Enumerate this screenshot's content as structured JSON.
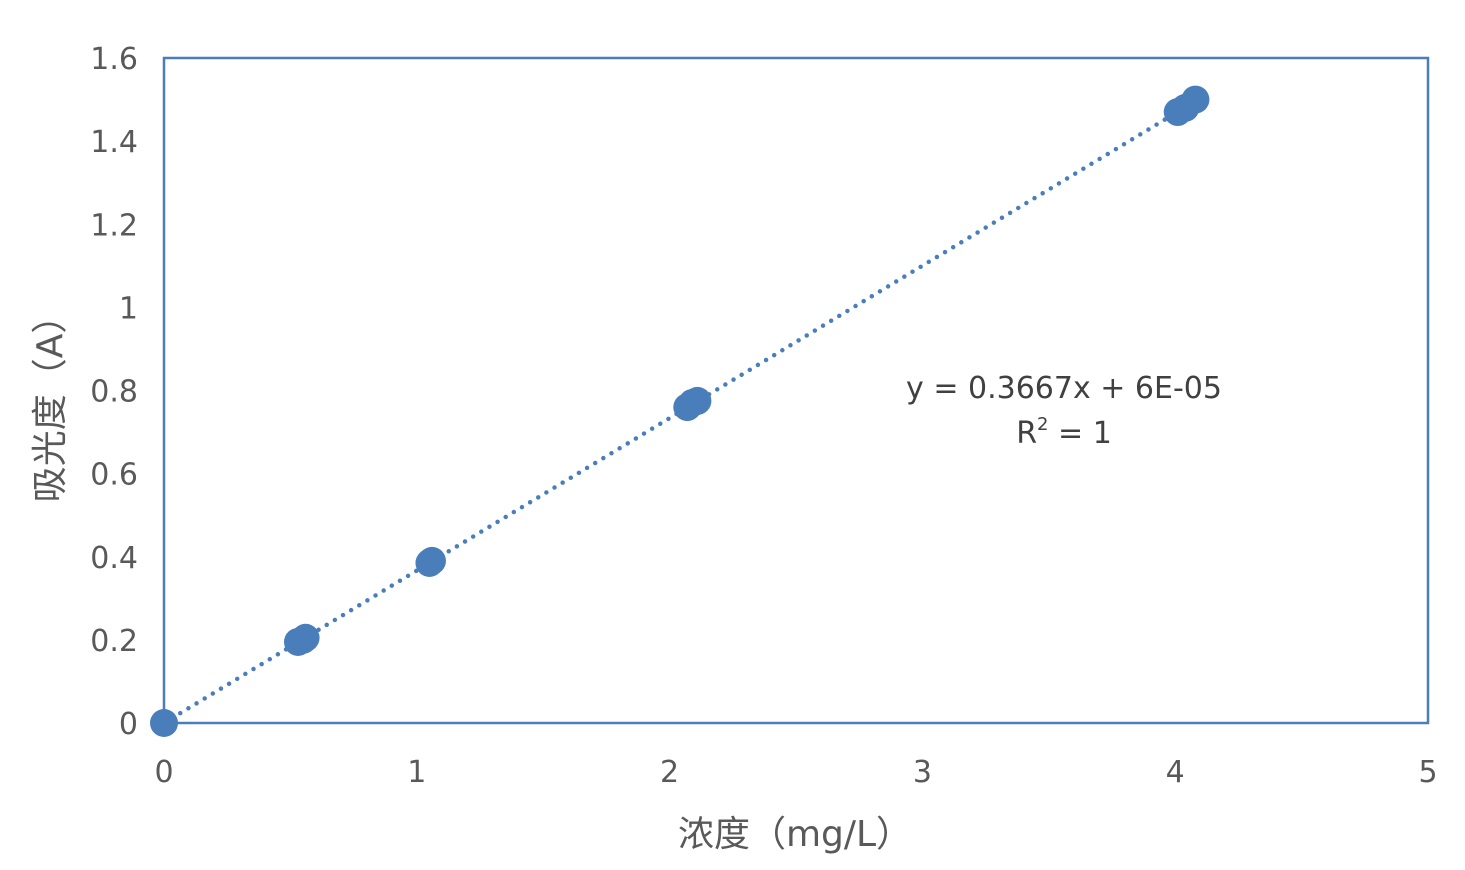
{
  "chart_data": {
    "type": "scatter",
    "xlabel": "浓度（mg/L）",
    "ylabel": "吸光度（A）",
    "xlim": [
      0,
      5
    ],
    "ylim": [
      0,
      1.6
    ],
    "x_ticks": [
      "0",
      "1",
      "2",
      "3",
      "4",
      "5"
    ],
    "y_ticks": [
      "0",
      "0.2",
      "0.4",
      "0.6",
      "0.8",
      "1",
      "1.2",
      "1.4",
      "1.6"
    ],
    "grid": false,
    "legend": "none",
    "series": [
      {
        "color": "#4a7ebb",
        "marker": "circle",
        "points": [
          {
            "x": 0,
            "y": 0
          },
          {
            "x": 0.53,
            "y": 0.195
          },
          {
            "x": 0.55,
            "y": 0.2
          },
          {
            "x": 0.56,
            "y": 0.205
          },
          {
            "x": 1.05,
            "y": 0.385
          },
          {
            "x": 1.06,
            "y": 0.39
          },
          {
            "x": 2.07,
            "y": 0.76
          },
          {
            "x": 2.09,
            "y": 0.77
          },
          {
            "x": 2.11,
            "y": 0.775
          },
          {
            "x": 4.01,
            "y": 1.47
          },
          {
            "x": 4.04,
            "y": 1.48
          },
          {
            "x": 4.08,
            "y": 1.5
          }
        ]
      }
    ],
    "trendline": {
      "type": "linear",
      "style": "dotted",
      "color": "#4a7ebb",
      "slope": 0.3667,
      "intercept": 6e-05,
      "equation": "y = 0.3667x + 6E-05",
      "r2_label": "R",
      "r2_sup": "2",
      "r2_value": " = 1"
    }
  }
}
